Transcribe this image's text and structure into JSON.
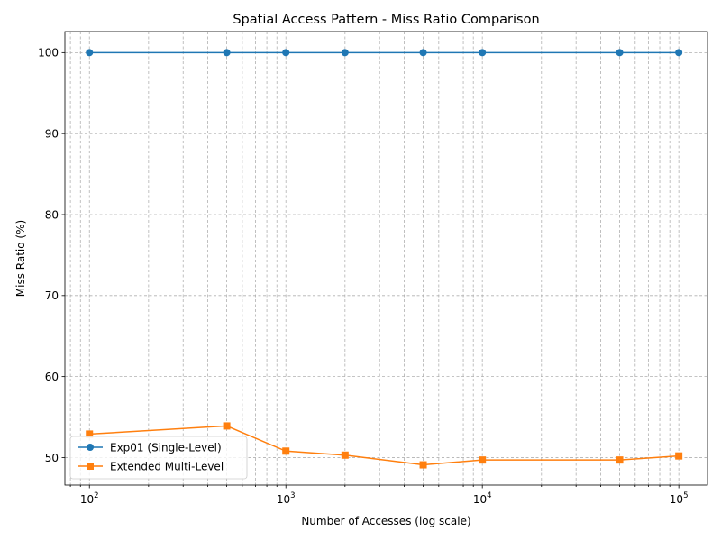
{
  "chart_data": {
    "type": "line",
    "title": "Spatial Access Pattern - Miss Ratio Comparison",
    "xlabel": "Number of Accesses (log scale)",
    "ylabel": "Miss Ratio (%)",
    "x_scale": "log",
    "xlim": [
      75,
      140000
    ],
    "ylim": [
      46.6,
      102.6
    ],
    "x_ticks": [
      {
        "value": 100,
        "base": "10",
        "exp": "2"
      },
      {
        "value": 1000,
        "base": "10",
        "exp": "3"
      },
      {
        "value": 10000,
        "base": "10",
        "exp": "4"
      },
      {
        "value": 100000,
        "base": "10",
        "exp": "5"
      }
    ],
    "y_ticks": [
      50,
      60,
      70,
      80,
      90,
      100
    ],
    "grid": true,
    "legend_position": "lower-left",
    "x": [
      100,
      500,
      1000,
      2000,
      5000,
      10000,
      50000,
      100000
    ],
    "series": [
      {
        "name": "Exp01 (Single-Level)",
        "values": [
          100,
          100,
          100,
          100,
          100,
          100,
          100,
          100
        ],
        "color": "#1f77b4",
        "marker": "circle"
      },
      {
        "name": "Extended Multi-Level",
        "values": [
          52.9,
          53.9,
          50.8,
          50.3,
          49.1,
          49.7,
          49.7,
          50.2
        ],
        "color": "#ff7f0e",
        "marker": "square"
      }
    ]
  }
}
